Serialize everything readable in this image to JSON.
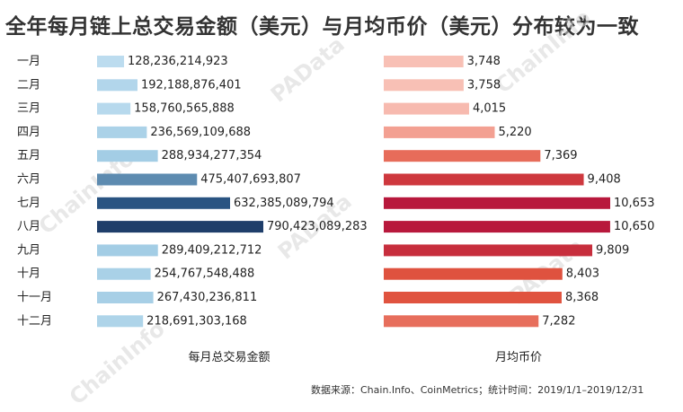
{
  "title": "全年每月链上总交易金额（美元）与月均币价（美元）分布较为一致",
  "source": "数据来源：Chain.Info、CoinMetrics；统计时间：2019/1/1–2019/12/31",
  "watermarks": [
    "ChainInfo",
    "ChainInfo",
    "ChainInfo",
    "PAData",
    "PAData",
    "PAData"
  ],
  "colors": {
    "volume_scale": [
      "#bcdcef",
      "#9ac8e1",
      "#2f5d8c",
      "#1f3e6a"
    ],
    "price_scale": [
      "#f8c0b5",
      "#f08e7e",
      "#e0533f",
      "#b8183c"
    ]
  },
  "chart_data": [
    {
      "type": "bar",
      "orientation": "horizontal",
      "xlabel": "每月总交易金额",
      "categories": [
        "一月",
        "二月",
        "三月",
        "四月",
        "五月",
        "六月",
        "七月",
        "八月",
        "九月",
        "十月",
        "十一月",
        "十二月"
      ],
      "values": [
        128236214923,
        192188876401,
        158760565888,
        236569109688,
        288934277354,
        475407693807,
        632385089794,
        790423089283,
        289409212712,
        254767548488,
        267430236811,
        218691303168
      ],
      "value_labels": [
        "128,236,214,923",
        "192,188,876,401",
        "158,760,565,888",
        "236,569,109,688",
        "288,934,277,354",
        "475,407,693,807",
        "632,385,089,794",
        "790,423,089,283",
        "289,409,212,712",
        "254,767,548,488",
        "267,430,236,811",
        "218,691,303,168"
      ],
      "grid": false
    },
    {
      "type": "bar",
      "orientation": "horizontal",
      "xlabel": "月均币价",
      "categories": [
        "一月",
        "二月",
        "三月",
        "四月",
        "五月",
        "六月",
        "七月",
        "八月",
        "九月",
        "十月",
        "十一月",
        "十二月"
      ],
      "values": [
        3748,
        3758,
        4015,
        5220,
        7369,
        9408,
        10653,
        10650,
        9809,
        8403,
        8368,
        7282
      ],
      "value_labels": [
        "3,748",
        "3,758",
        "4,015",
        "5,220",
        "7,369",
        "9,408",
        "10,653",
        "10,650",
        "9,809",
        "8,403",
        "8,368",
        "7,282"
      ],
      "grid": false
    }
  ]
}
